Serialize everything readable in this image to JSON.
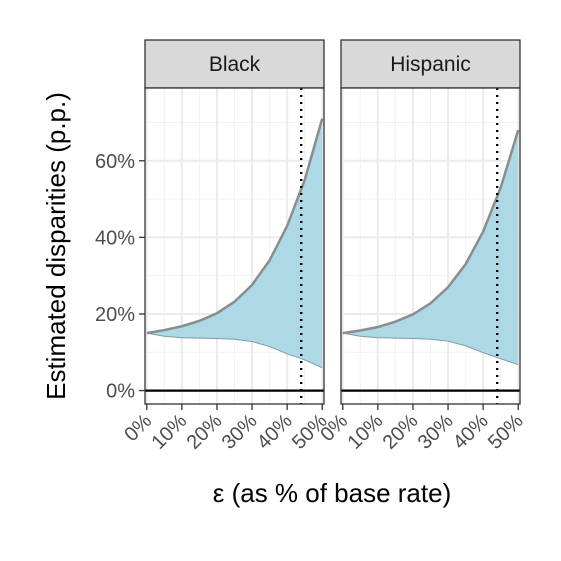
{
  "chart_data": {
    "type": "area",
    "xlabel": "ε (as % of base rate)",
    "ylabel": "Estimated disparities (p.p.)",
    "x_ticks": [
      "0%",
      "10%",
      "20%",
      "30%",
      "40%",
      "50%"
    ],
    "y_ticks": [
      "0%",
      "20%",
      "40%",
      "60%"
    ],
    "xlim": [
      -0.005,
      0.505
    ],
    "ylim": [
      -0.035,
      0.79
    ],
    "reference_hline": 0,
    "vline_style": "dotted",
    "fill_color": "#add8e6",
    "upper_line_color": "#8c8c8c",
    "panels": [
      {
        "strip": "Black",
        "vline_x": 0.44,
        "x": [
          0,
          0.05,
          0.1,
          0.15,
          0.2,
          0.25,
          0.3,
          0.35,
          0.4,
          0.45,
          0.5
        ],
        "upper": [
          0.15,
          0.158,
          0.168,
          0.182,
          0.202,
          0.232,
          0.276,
          0.34,
          0.43,
          0.55,
          0.71
        ],
        "lower": [
          0.15,
          0.142,
          0.138,
          0.137,
          0.136,
          0.134,
          0.128,
          0.115,
          0.096,
          0.08,
          0.06
        ]
      },
      {
        "strip": "Hispanic",
        "vline_x": 0.44,
        "x": [
          0,
          0.05,
          0.1,
          0.15,
          0.2,
          0.25,
          0.3,
          0.35,
          0.4,
          0.45,
          0.5
        ],
        "upper": [
          0.15,
          0.157,
          0.166,
          0.18,
          0.199,
          0.228,
          0.27,
          0.33,
          0.415,
          0.53,
          0.68
        ],
        "lower": [
          0.15,
          0.142,
          0.138,
          0.137,
          0.136,
          0.134,
          0.129,
          0.117,
          0.099,
          0.083,
          0.068
        ]
      }
    ]
  }
}
